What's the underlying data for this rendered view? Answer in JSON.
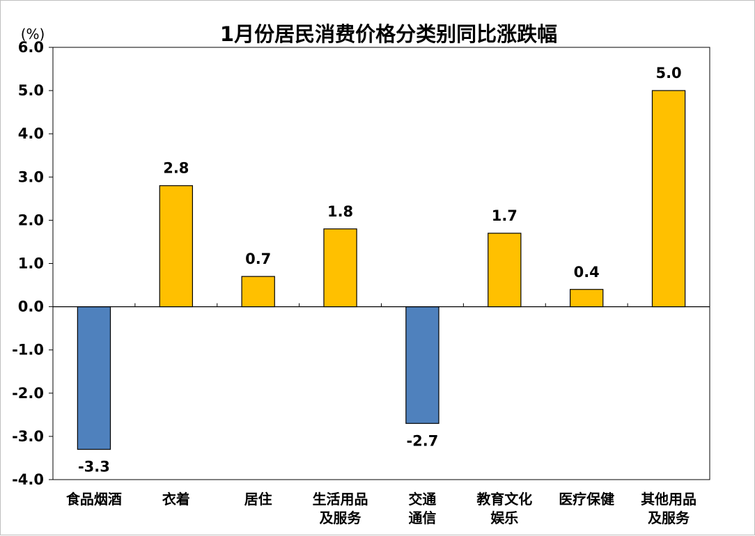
{
  "chart_data": {
    "type": "bar",
    "title": "1月份居民消费价格分类别同比涨跌幅",
    "unit": "(%)",
    "categories": [
      [
        "食品烟酒"
      ],
      [
        "衣着"
      ],
      [
        "居住"
      ],
      [
        "生活用品",
        "及服务"
      ],
      [
        "交通",
        "通信"
      ],
      [
        "教育文化",
        "娱乐"
      ],
      [
        "医疗保健"
      ],
      [
        "其他用品",
        "及服务"
      ]
    ],
    "values": [
      -3.3,
      2.8,
      0.7,
      1.8,
      -2.7,
      1.7,
      0.4,
      5.0
    ],
    "data_labels": [
      "-3.3",
      "2.8",
      "0.7",
      "1.8",
      "-2.7",
      "1.7",
      "0.4",
      "5.0"
    ],
    "ylim": [
      -4.0,
      6.0
    ],
    "yticks": [
      6.0,
      5.0,
      4.0,
      3.0,
      2.0,
      1.0,
      0.0,
      -1.0,
      -2.0,
      -3.0,
      -4.0
    ],
    "ytick_labels": [
      "6.0",
      "5.0",
      "4.0",
      "3.0",
      "2.0",
      "1.0",
      "0.0",
      "-1.0",
      "-2.0",
      "-3.0",
      "-4.0"
    ],
    "grid": false,
    "legend": "none",
    "colors": {
      "positive": "#FFC000",
      "negative": "#4F81BD",
      "outline": "#000000"
    }
  }
}
